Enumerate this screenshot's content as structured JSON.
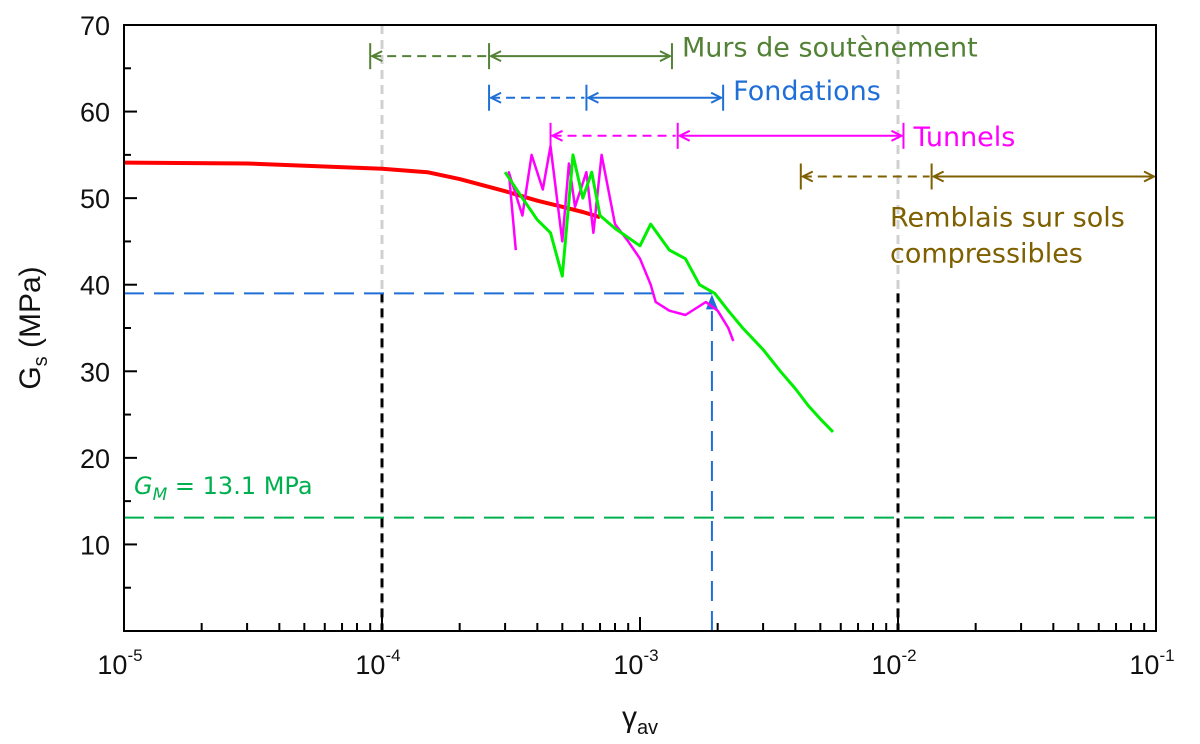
{
  "chart_data": {
    "type": "line",
    "x_scale": "log",
    "xlim": [
      1e-05,
      0.1
    ],
    "ylim": [
      0,
      70
    ],
    "xlabel": "γ",
    "xlabel_sub": "av",
    "ylabel": "G",
    "ylabel_sub": "s",
    "ylabel_unit": " (MPa)",
    "x_ticks": [
      {
        "base": "10",
        "exp": "-5",
        "value": 1e-05
      },
      {
        "base": "10",
        "exp": "-4",
        "value": 0.0001
      },
      {
        "base": "10",
        "exp": "-3",
        "value": 0.001
      },
      {
        "base": "10",
        "exp": "-2",
        "value": 0.01
      },
      {
        "base": "10",
        "exp": "-1",
        "value": 0.1
      }
    ],
    "y_ticks": [
      10,
      20,
      30,
      40,
      50,
      60,
      70
    ],
    "series": [
      {
        "color": "#ff0000",
        "points": [
          [
            1e-05,
            54.1
          ],
          [
            3e-05,
            54.0
          ],
          [
            0.0001,
            53.4
          ],
          [
            0.00015,
            53.0
          ],
          [
            0.0002,
            52.2
          ],
          [
            0.0003,
            50.8
          ],
          [
            0.0004,
            49.7
          ],
          [
            0.0005,
            49.0
          ],
          [
            0.0006,
            48.4
          ],
          [
            0.0007,
            47.8
          ]
        ]
      },
      {
        "color": "#ff00ff",
        "points": [
          [
            0.00033,
            44.0
          ],
          [
            0.00031,
            53.0
          ],
          [
            0.00035,
            48.0
          ],
          [
            0.00038,
            55.0
          ],
          [
            0.00042,
            51.0
          ],
          [
            0.00045,
            56.0
          ],
          [
            0.0005,
            45.0
          ],
          [
            0.00053,
            54.0
          ],
          [
            0.00056,
            49.0
          ],
          [
            0.00062,
            53.0
          ],
          [
            0.00066,
            46.0
          ],
          [
            0.00071,
            55.0
          ],
          [
            0.0008,
            47.0
          ],
          [
            0.0009,
            45.0
          ],
          [
            0.001,
            43.0
          ],
          [
            0.0011,
            40.0
          ],
          [
            0.00115,
            38.0
          ],
          [
            0.0013,
            37.0
          ],
          [
            0.0015,
            36.5
          ],
          [
            0.0018,
            38.0
          ],
          [
            0.002,
            37.0
          ],
          [
            0.0022,
            35.0
          ],
          [
            0.0023,
            33.5
          ]
        ]
      },
      {
        "color": "#00ee00",
        "points": [
          [
            0.0003,
            53.0
          ],
          [
            0.00035,
            50.0
          ],
          [
            0.0004,
            47.5
          ],
          [
            0.00045,
            46.0
          ],
          [
            0.0005,
            41.0
          ],
          [
            0.00055,
            55.0
          ],
          [
            0.0006,
            50.0
          ],
          [
            0.00065,
            53.0
          ],
          [
            0.0007,
            48.0
          ],
          [
            0.0008,
            46.5
          ],
          [
            0.001,
            44.5
          ],
          [
            0.0011,
            47.0
          ],
          [
            0.0013,
            44.0
          ],
          [
            0.0015,
            43.0
          ],
          [
            0.0017,
            40.0
          ],
          [
            0.00195,
            39.0
          ],
          [
            0.0022,
            37.0
          ],
          [
            0.0025,
            35.0
          ],
          [
            0.003,
            32.5
          ],
          [
            0.0035,
            30.0
          ],
          [
            0.004,
            28.0
          ],
          [
            0.0045,
            26.0
          ],
          [
            0.005,
            24.5
          ],
          [
            0.0056,
            23.0
          ]
        ]
      }
    ],
    "reference_lines": {
      "vertical_black": [
        0.0001,
        0.01
      ],
      "blue_h_y": 39,
      "blue_h_x_end": 0.0019,
      "blue_v_x": 0.0019,
      "gm_y": 13.1,
      "gm_label": "G",
      "gm_label_sub": "M",
      "gm_label_rest": " = 13.1 MPa"
    },
    "ranges": [
      {
        "label": "Murs de soutènement",
        "color": "#538135",
        "y": 66.4,
        "label_y": 67.5,
        "dashed": [
          9e-05,
          0.00026
        ],
        "solid": [
          0.00026,
          0.00133
        ]
      },
      {
        "label": "Fondations",
        "color": "#1f6fd6",
        "y": 61.6,
        "label_y": 62.5,
        "dashed": [
          0.00026,
          0.00062
        ],
        "solid": [
          0.00062,
          0.0021
        ]
      },
      {
        "label": "Tunnels",
        "color": "#ff00ff",
        "y": 57.2,
        "label_y": 57.2,
        "dashed": [
          0.00045,
          0.0014
        ],
        "solid": [
          0.0014,
          0.0105
        ]
      },
      {
        "label": "Remblais sur sols",
        "label2": "compressibles",
        "color": "#7f6000",
        "y": 52.5,
        "label_y": 47.9,
        "label2_y": 43.7,
        "dashed": [
          0.0042,
          0.0135
        ],
        "solid": [
          0.0135,
          0.1
        ]
      }
    ],
    "grid": false,
    "legend": "none"
  },
  "colors": {
    "black_dash": "#000000",
    "blue_dash": "#1f6fd6",
    "gm_line": "#00b050"
  }
}
